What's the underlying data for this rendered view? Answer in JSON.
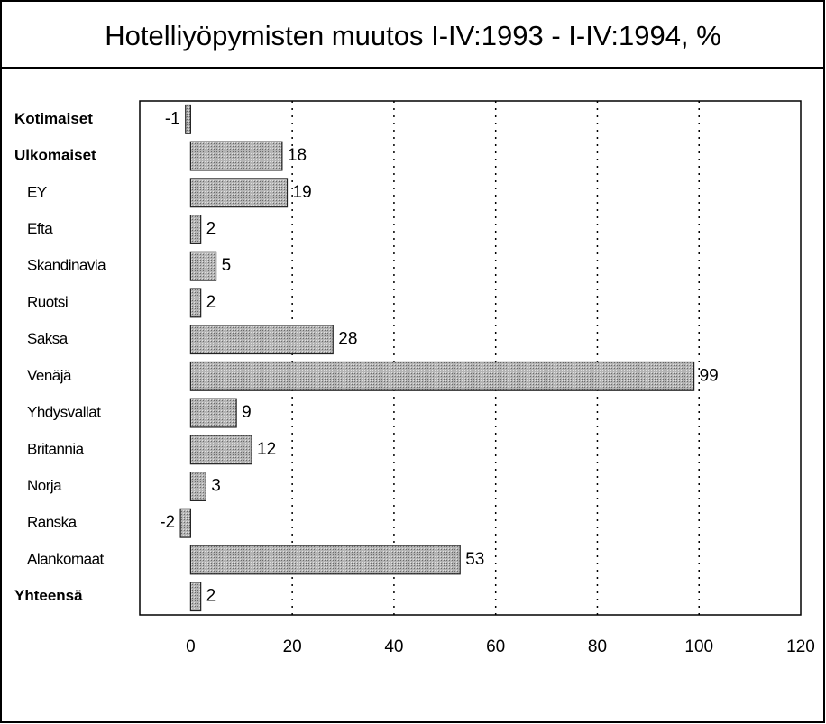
{
  "chart_data": {
    "type": "barh",
    "title": "Hotelliyöpymisten muutos I-IV:1993 - I-IV:1994, %",
    "categories": [
      "Kotimaiset",
      "Ulkomaiset",
      "EY",
      "Efta",
      "Skandinavia",
      "Ruotsi",
      "Saksa",
      "Venäjä",
      "Yhdysvallat",
      "Britannia",
      "Norja",
      "Ranska",
      "Alankomaat",
      "Yhteensä"
    ],
    "values": [
      -1,
      18,
      19,
      2,
      5,
      2,
      28,
      99,
      9,
      12,
      3,
      -2,
      53,
      2
    ],
    "color": "#a9a9a9",
    "xlim": [
      -10,
      120
    ],
    "xticks": [
      0,
      20,
      40,
      60,
      80,
      100,
      120
    ],
    "grid": true
  }
}
